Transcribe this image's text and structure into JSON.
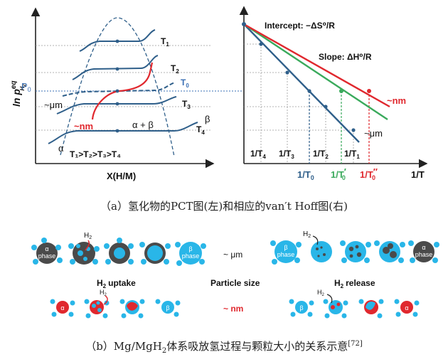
{
  "left_plot": {
    "ylabel": "ln p",
    "ylabel_sup": "eq",
    "ylabel_sub": "H",
    "ylabel_sub2": "2",
    "xlabel": "X(H/M)",
    "p0": "P",
    "p0_sub": "0",
    "isotherms": [
      {
        "label": "T",
        "sub": "1"
      },
      {
        "label": "T",
        "sub": "2"
      },
      {
        "label": "T",
        "sub": "0"
      },
      {
        "label": "T",
        "sub": "3"
      },
      {
        "label": "T",
        "sub": "4"
      }
    ],
    "t4_beta": "β",
    "um_label": "~μm",
    "nm_label": "~nm",
    "alpha_beta": "α + β",
    "alpha": "α",
    "order": "T₁>T₂>T₃>T₄"
  },
  "right_plot": {
    "intercept": "Intercept: −ΔS⁰/R",
    "slope": "Slope: ΔH⁰/R",
    "nm_label": "~nm",
    "um_label": "~μm",
    "xlabel": "1/T",
    "ticks": [
      {
        "label": "1/T",
        "sub": "4"
      },
      {
        "label": "1/T",
        "sub": "3"
      },
      {
        "label": "1/T",
        "sub": "2"
      },
      {
        "label": "1/T",
        "sub": "1"
      }
    ],
    "t0_labels": [
      {
        "label": "1/T",
        "sub": "0",
        "mark": ""
      },
      {
        "label": "1/T",
        "sub": "0",
        "mark": "′"
      },
      {
        "label": "1/T",
        "sub": "0",
        "mark": "″"
      }
    ],
    "colors": {
      "um": "#2f5f8a",
      "green": "#3aaa5c",
      "red": "#e0282e"
    }
  },
  "captions": {
    "a": "（a）氢化物的PCT图(左)和相应的van′t Hoff图(右)",
    "b_pre": "（b）Mg/MgH",
    "b_sub": "2",
    "b_post": "体系吸放氢过程与颗粒大小的关系示意",
    "b_ref": "[72]"
  },
  "panel_b": {
    "alpha_phase": "α",
    "alpha_phase2": "phase",
    "beta_phase": "β",
    "beta_phase2": "phase",
    "h2": "H",
    "h2_sub": "2",
    "uptake": "uptake",
    "release": "release",
    "particle_size": "Particle size",
    "um_label": "~ μm",
    "nm_label": "~ nm",
    "alpha": "α",
    "beta": "β",
    "colors": {
      "cyan": "#29b6e8",
      "dark": "#4a4a4a",
      "red": "#e0282e"
    }
  }
}
